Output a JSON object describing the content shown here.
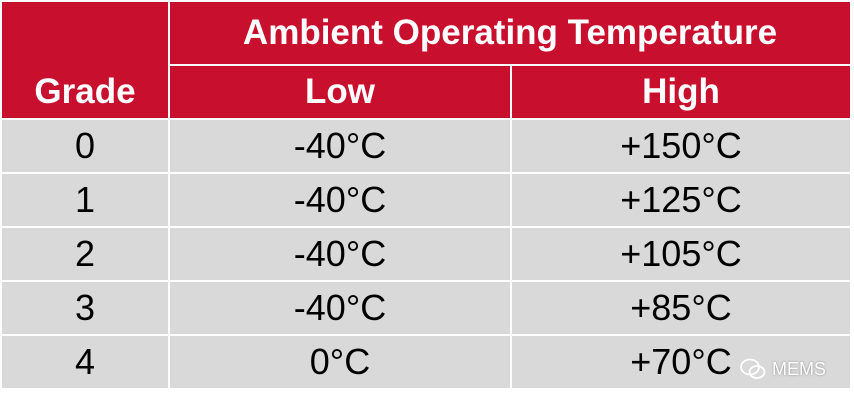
{
  "header": {
    "grade": "Grade",
    "group": "Ambient Operating Temperature",
    "low": "Low",
    "high": "High"
  },
  "table": {
    "rows": [
      [
        "0",
        "-40°C",
        "+150°C"
      ],
      [
        "1",
        "-40°C",
        "+125°C"
      ],
      [
        "2",
        "-40°C",
        "+105°C"
      ],
      [
        "3",
        "-40°C",
        "+85°C"
      ],
      [
        "4",
        "0°C",
        "+70°C"
      ]
    ]
  },
  "watermark": "MEMS"
}
